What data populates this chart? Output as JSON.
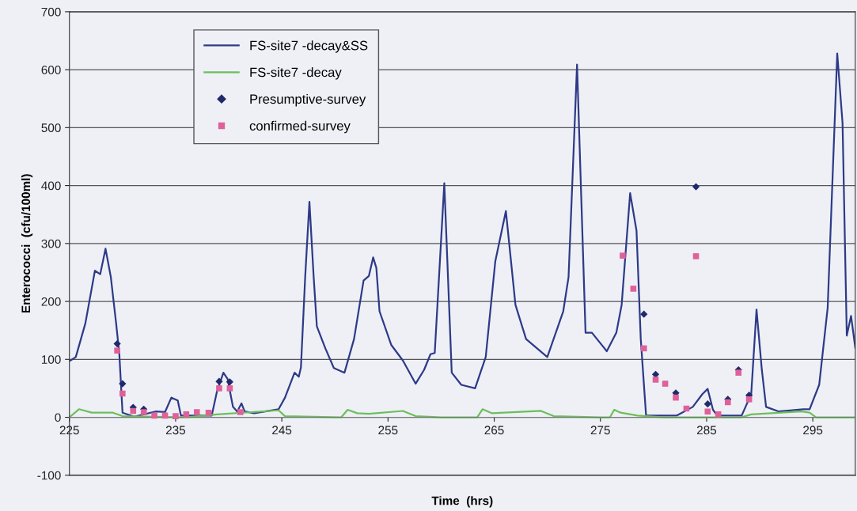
{
  "chart_data": {
    "type": "line",
    "xlabel": "Time  (hrs)",
    "ylabel": "Enterococci  (cfu/100ml)",
    "xlim": [
      225,
      299
    ],
    "xticks": [
      225,
      235,
      245,
      255,
      265,
      275,
      285,
      295
    ],
    "ylim": [
      -100,
      700
    ],
    "yticks": [
      -100,
      0,
      100,
      200,
      300,
      400,
      500,
      600,
      700
    ],
    "grid": "y",
    "legend": "top left",
    "series": [
      {
        "name": "FS-site7 -decay&SS",
        "color": "#2e3a87",
        "marker": "none",
        "line_style": "solid",
        "x": [
          225.1,
          225.6,
          226.5,
          227.4,
          227.9,
          228.4,
          228.9,
          229.4,
          229.7,
          230.0,
          231.1,
          233.1,
          234.0,
          234.6,
          235.2,
          235.5,
          238.4,
          238.9,
          239.5,
          239.9,
          240.4,
          240.8,
          241.2,
          241.5,
          242.4,
          244.7,
          245.3,
          246.2,
          246.6,
          246.8,
          247.2,
          247.6,
          248.0,
          248.3,
          249.1,
          249.9,
          250.9,
          251.8,
          252.7,
          253.2,
          253.6,
          253.9,
          254.2,
          255.3,
          256.4,
          257.6,
          258.4,
          259.0,
          259.4,
          260.3,
          261.0,
          261.9,
          263.2,
          264.2,
          265.1,
          266.1,
          267.0,
          268.0,
          270.0,
          271.5,
          272.0,
          272.8,
          273.6,
          274.2,
          275.6,
          276.5,
          277.0,
          277.8,
          278.4,
          278.8,
          279.3,
          282.2,
          283.7,
          284.6,
          285.1,
          285.6,
          286.0,
          288.3,
          289.2,
          289.7,
          290.2,
          290.6,
          291.8,
          294.1,
          294.7,
          295.6,
          296.4,
          297.3,
          297.8,
          298.2,
          298.6,
          299.0
        ],
        "values": [
          98,
          104,
          162,
          253,
          247,
          291,
          242,
          162,
          109,
          8,
          1,
          10,
          9,
          34,
          29,
          3,
          3,
          45,
          77,
          66,
          18,
          10,
          24,
          10,
          7,
          14,
          34,
          77,
          70,
          86,
          242,
          372,
          242,
          157,
          119,
          85,
          77,
          135,
          236,
          244,
          276,
          258,
          183,
          125,
          98,
          58,
          82,
          109,
          111,
          404,
          77,
          56,
          50,
          104,
          269,
          356,
          194,
          135,
          104,
          183,
          242,
          609,
          146,
          146,
          114,
          146,
          194,
          387,
          322,
          135,
          3,
          3,
          18,
          40,
          49,
          13,
          3,
          3,
          40,
          186,
          82,
          18,
          10,
          14,
          14,
          56,
          189,
          628,
          508,
          141,
          175,
          120
        ]
      },
      {
        "name": "FS-site7 -decay",
        "color": "#6cbf5a",
        "marker": "none",
        "line_style": "solid",
        "x": [
          225.0,
          225.9,
          227.1,
          229.1,
          230.0,
          236.0,
          238.9,
          244.7,
          245.3,
          250.6,
          251.2,
          252.1,
          253.2,
          256.4,
          257.6,
          260.0,
          263.4,
          263.9,
          264.8,
          269.4,
          270.6,
          275.0,
          275.9,
          276.3,
          276.9,
          278.5,
          281.0,
          288.3,
          289.2,
          293.9,
          294.7,
          295.3,
          299.0
        ],
        "values": [
          0,
          14,
          8,
          8,
          2,
          0,
          5,
          12,
          2,
          0,
          13,
          7,
          6,
          11,
          2,
          0,
          0,
          14,
          7,
          11,
          2,
          0,
          0,
          13,
          8,
          3,
          0,
          0,
          5,
          10,
          8,
          0,
          0
        ]
      },
      {
        "name": "Presumptive-survey",
        "type": "scatter",
        "color": "#1f2a6b",
        "marker": "diamond",
        "x": [
          229.5,
          230.0,
          231.0,
          232.0,
          239.1,
          240.1,
          279.1,
          280.2,
          282.1,
          284.0,
          285.1,
          287.0,
          288.0,
          289.0
        ],
        "values": [
          127,
          58,
          17,
          14,
          62,
          61,
          178,
          74,
          42,
          398,
          23,
          31,
          82,
          38
        ]
      },
      {
        "name": "confirmed-survey",
        "type": "scatter",
        "color": "#e0609a",
        "marker": "square",
        "x": [
          229.5,
          230.0,
          231.0,
          232.0,
          233.0,
          234.0,
          235.0,
          236.0,
          237.0,
          238.1,
          239.1,
          240.1,
          241.1,
          277.1,
          278.1,
          279.1,
          280.2,
          281.1,
          282.1,
          283.1,
          284.0,
          285.1,
          286.1,
          287.0,
          288.0,
          289.0
        ],
        "values": [
          115,
          41,
          11,
          9,
          3,
          3,
          2,
          5,
          9,
          8,
          50,
          50,
          9,
          279,
          222,
          119,
          65,
          58,
          34,
          15,
          278,
          10,
          5,
          26,
          77,
          31
        ]
      }
    ]
  }
}
